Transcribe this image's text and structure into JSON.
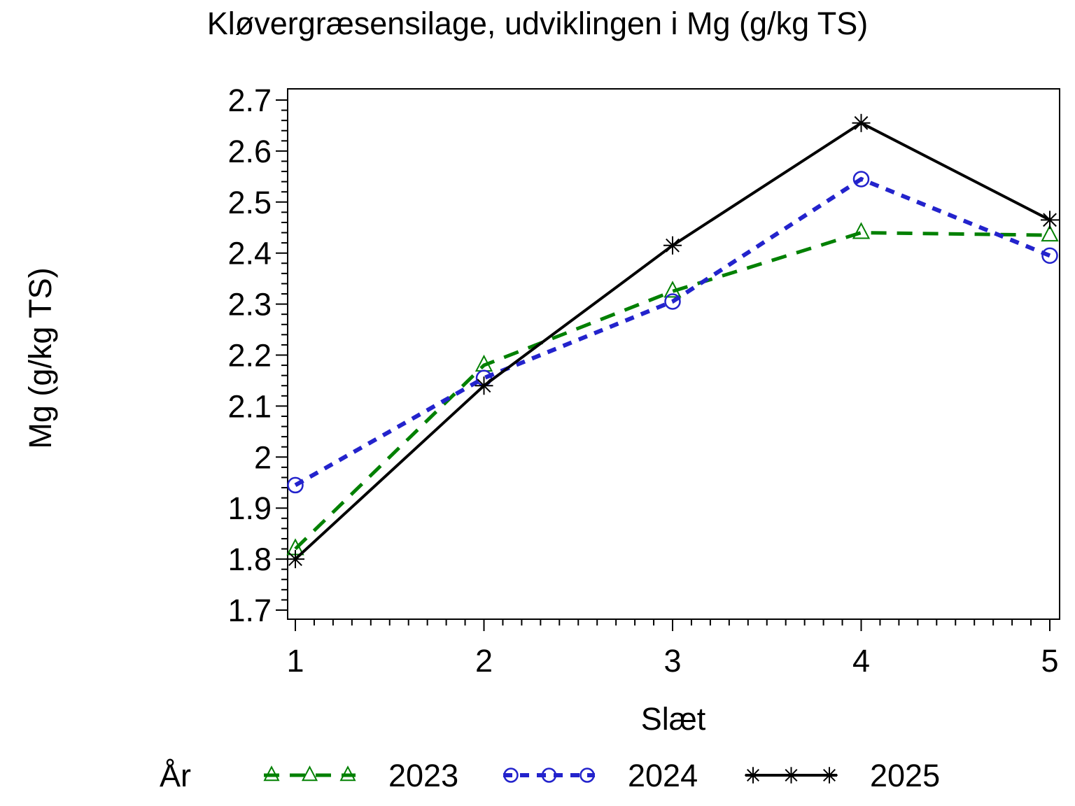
{
  "title": "Kløvergræsensilage, udviklingen i Mg (g/kg TS)",
  "x_axis": {
    "label": "Slæt",
    "ticks": [
      "1",
      "2",
      "3",
      "4",
      "5"
    ]
  },
  "y_axis": {
    "label": "Mg (g/kg TS)",
    "ticks": [
      "1.7",
      "1.8",
      "1.9",
      "2",
      "2.1",
      "2.2",
      "2.3",
      "2.4",
      "2.5",
      "2.6",
      "2.7"
    ]
  },
  "legend": {
    "label": "År",
    "entries": [
      "2023",
      "2024",
      "2025"
    ]
  },
  "colors": {
    "series_2023": "#008000",
    "series_2024": "#2323cc",
    "series_2025": "#000000",
    "axis": "#000000",
    "background": "#ffffff"
  },
  "chart_data": {
    "type": "line",
    "title": "Kløvergræsensilage, udviklingen i Mg (g/kg TS)",
    "xlabel": "Slæt",
    "ylabel": "Mg (g/kg TS)",
    "x": [
      1,
      2,
      3,
      4,
      5
    ],
    "series": [
      {
        "name": "2023",
        "values": [
          1.82,
          2.18,
          2.325,
          2.44,
          2.435
        ],
        "color": "#008000",
        "line": "dashed-long",
        "marker": "triangle"
      },
      {
        "name": "2024",
        "values": [
          1.945,
          2.155,
          2.305,
          2.545,
          2.395
        ],
        "color": "#2323cc",
        "line": "dashed",
        "marker": "circle"
      },
      {
        "name": "2025",
        "values": [
          1.8,
          2.14,
          2.415,
          2.655,
          2.465
        ],
        "color": "#000000",
        "line": "solid",
        "marker": "asterisk"
      }
    ],
    "xlim": [
      1,
      5
    ],
    "ylim": [
      1.7,
      2.7
    ],
    "y_major_step": 0.1,
    "y_minor_step": 0.02,
    "x_minor_step": 0.1,
    "grid": false,
    "legend_position": "bottom"
  }
}
